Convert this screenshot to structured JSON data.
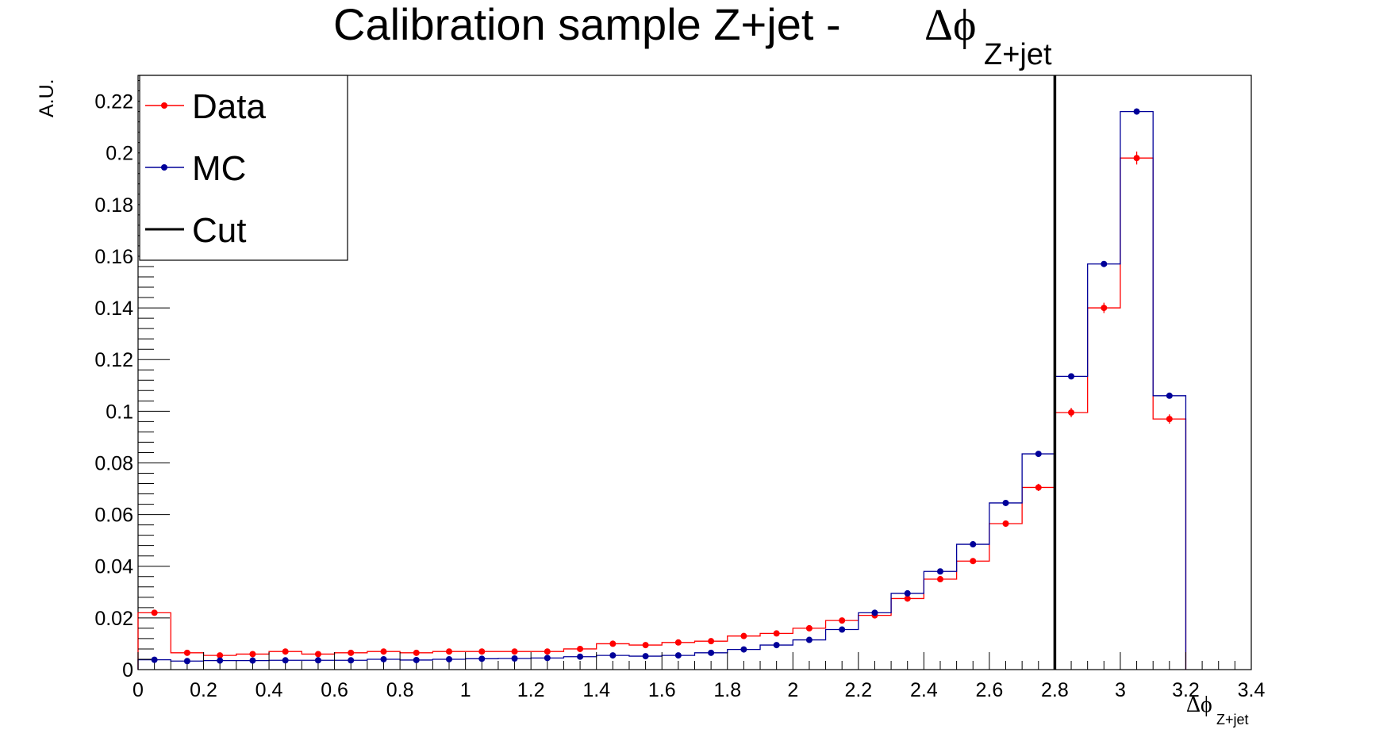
{
  "chart_data": {
    "type": "line",
    "title": {
      "main": "Calibration sample Z+jet -",
      "symbol": "Δϕ",
      "subscript": "Z+jet"
    },
    "xlabel": {
      "symbol": "Δϕ",
      "subscript": "Z+jet"
    },
    "ylabel": "A.U.",
    "xlim": [
      0,
      3.4
    ],
    "ylim": [
      0,
      0.23
    ],
    "x_ticks": [
      0,
      0.2,
      0.4,
      0.6,
      0.8,
      1,
      1.2,
      1.4,
      1.6,
      1.8,
      2,
      2.2,
      2.4,
      2.6,
      2.8,
      3,
      3.2,
      3.4
    ],
    "x_tick_labels": [
      "0",
      "0.2",
      "0.4",
      "0.6",
      "0.8",
      "1",
      "1.2",
      "1.4",
      "1.6",
      "1.8",
      "2",
      "2.2",
      "2.4",
      "2.6",
      "2.8",
      "3",
      "3.2",
      "3.4"
    ],
    "y_ticks": [
      0,
      0.02,
      0.04,
      0.06,
      0.08,
      0.1,
      0.12,
      0.14,
      0.16,
      0.18,
      0.2,
      0.22
    ],
    "y_tick_labels": [
      "0",
      "0.02",
      "0.04",
      "0.06",
      "0.08",
      "0.1",
      "0.12",
      "0.14",
      "0.16",
      "0.18",
      "0.2",
      "0.22"
    ],
    "bin_edges": [
      0,
      0.1,
      0.2,
      0.3,
      0.4,
      0.5,
      0.6,
      0.7,
      0.8,
      0.9,
      1.0,
      1.1,
      1.2,
      1.3,
      1.4,
      1.5,
      1.6,
      1.7,
      1.8,
      1.9,
      2.0,
      2.1,
      2.2,
      2.3,
      2.4,
      2.5,
      2.6,
      2.7,
      2.8,
      2.9,
      3.0,
      3.1,
      3.2
    ],
    "series": [
      {
        "name": "Data",
        "color": "#ff0000",
        "values": [
          0.022,
          0.0065,
          0.0055,
          0.006,
          0.007,
          0.006,
          0.0065,
          0.007,
          0.0065,
          0.007,
          0.007,
          0.007,
          0.007,
          0.008,
          0.01,
          0.0095,
          0.0105,
          0.011,
          0.013,
          0.014,
          0.016,
          0.019,
          0.021,
          0.0275,
          0.035,
          0.042,
          0.0565,
          0.0705,
          0.0995,
          0.14,
          0.198,
          0.097
        ],
        "errors": [
          0.0008,
          0.0004,
          0.0004,
          0.0004,
          0.0004,
          0.0004,
          0.0004,
          0.0004,
          0.0004,
          0.0004,
          0.0004,
          0.0004,
          0.0004,
          0.0005,
          0.0005,
          0.0005,
          0.0005,
          0.0005,
          0.0006,
          0.0006,
          0.0006,
          0.0007,
          0.0007,
          0.0008,
          0.0009,
          0.001,
          0.0012,
          0.0014,
          0.0018,
          0.002,
          0.0025,
          0.0018
        ]
      },
      {
        "name": "MC",
        "color": "#000099",
        "values": [
          0.0038,
          0.0033,
          0.0035,
          0.0035,
          0.0036,
          0.0036,
          0.0036,
          0.004,
          0.0037,
          0.004,
          0.0042,
          0.0043,
          0.0045,
          0.005,
          0.0055,
          0.0052,
          0.0055,
          0.0065,
          0.0078,
          0.0095,
          0.0115,
          0.0155,
          0.022,
          0.0295,
          0.038,
          0.0485,
          0.0645,
          0.0835,
          0.1135,
          0.157,
          0.216,
          0.106
        ],
        "errors": [
          0.0002,
          0.0002,
          0.0002,
          0.0002,
          0.0002,
          0.0002,
          0.0002,
          0.0002,
          0.0002,
          0.0002,
          0.0002,
          0.0002,
          0.0002,
          0.0002,
          0.0002,
          0.0002,
          0.0002,
          0.0003,
          0.0003,
          0.0003,
          0.0003,
          0.0004,
          0.0004,
          0.0005,
          0.0005,
          0.0006,
          0.0006,
          0.0007,
          0.0008,
          0.001,
          0.0012,
          0.0008
        ]
      }
    ],
    "cut": {
      "name": "Cut",
      "x": 2.8,
      "color": "#000000"
    },
    "legend": {
      "position": "top-left",
      "entries": [
        "Data",
        "MC",
        "Cut"
      ]
    }
  }
}
